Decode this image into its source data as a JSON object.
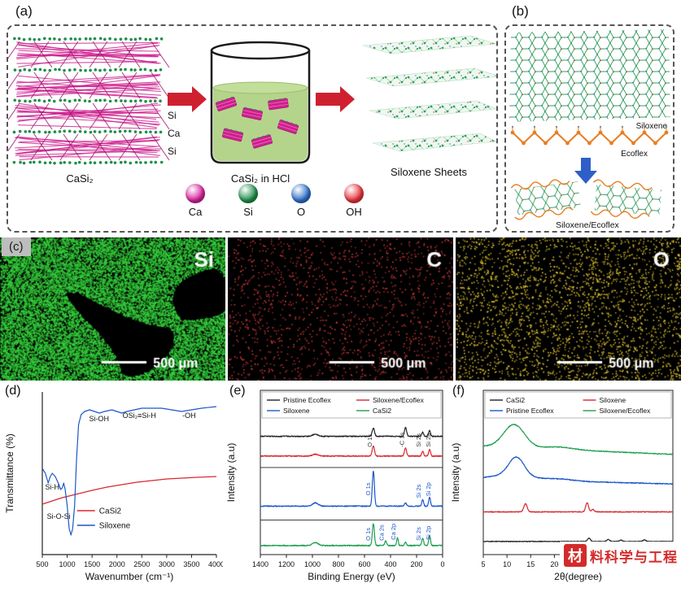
{
  "panel_a": {
    "label": "(a)",
    "crystal_label": "CaSi₂",
    "layer_labels": [
      "Si",
      "Ca",
      "Si"
    ],
    "beaker_label": "CaSi₂ in HCl",
    "sheets_label": "Siloxene Sheets",
    "legend": [
      {
        "name": "Ca",
        "color": "#d6219c"
      },
      {
        "name": "Si",
        "color": "#1e8f4a"
      },
      {
        "name": "O",
        "color": "#2e6fc9"
      },
      {
        "name": "OH",
        "color": "#e8323c"
      }
    ]
  },
  "panel_b": {
    "label": "(b)",
    "siloxene_label": "Siloxene",
    "ecoflex_label": "Ecoflex",
    "composite_label": "Siloxene/Ecoflex"
  },
  "panel_c": {
    "label": "(c)",
    "maps": [
      {
        "element": "Si",
        "dot_color": "#35d23c",
        "density": "dense",
        "scale_label": "500 μm"
      },
      {
        "element": "C",
        "dot_color": "#e23b3b",
        "density": "sparse",
        "scale_label": "500 μm"
      },
      {
        "element": "O",
        "dot_color": "#f0d22e",
        "density": "medium",
        "scale_label": "500 μm"
      }
    ]
  },
  "watermark": {
    "logo_char": "材",
    "text": "料科学与工程",
    "color": "#d42a2a"
  },
  "chart_data": [
    {
      "id": "ftir",
      "panel_label": "(d)",
      "type": "line",
      "xlabel": "Wavenumber (cm⁻¹)",
      "ylabel": "Transmittance (%)",
      "xlim": [
        500,
        4000
      ],
      "ylim": [
        0,
        100
      ],
      "xticks": [
        500,
        1000,
        1500,
        2000,
        2500,
        3000,
        3500,
        4000
      ],
      "legend_pos": [
        0.2,
        0.27
      ],
      "legend": [
        {
          "name": "CaSi2",
          "color": "#d7282f"
        },
        {
          "name": "Siloxene",
          "color": "#1c57c9"
        }
      ],
      "annotations": [
        {
          "text": "Si-H",
          "x": 700,
          "y": 40
        },
        {
          "text": "Si-O-Si",
          "x": 830,
          "y": 22
        },
        {
          "text": "Si-OH",
          "x": 1640,
          "y": 82
        },
        {
          "text": "OSi₂≡Si-H",
          "x": 2450,
          "y": 84
        },
        {
          "text": "-OH",
          "x": 3450,
          "y": 84
        }
      ],
      "series": [
        {
          "name": "CaSi2",
          "color": "#d7282f",
          "points": [
            [
              500,
              31
            ],
            [
              700,
              33
            ],
            [
              900,
              35
            ],
            [
              1100,
              36.5
            ],
            [
              1300,
              38
            ],
            [
              1500,
              39.5
            ],
            [
              1800,
              41.5
            ],
            [
              2100,
              43
            ],
            [
              2400,
              44.5
            ],
            [
              2700,
              45.5
            ],
            [
              3000,
              46.5
            ],
            [
              3300,
              47
            ],
            [
              3600,
              47.5
            ],
            [
              4000,
              48
            ]
          ]
        },
        {
          "name": "Siloxene",
          "color": "#1c57c9",
          "points": [
            [
              500,
              53
            ],
            [
              560,
              50
            ],
            [
              620,
              44
            ],
            [
              660,
              48
            ],
            [
              700,
              50
            ],
            [
              760,
              48
            ],
            [
              820,
              44
            ],
            [
              870,
              40
            ],
            [
              900,
              41
            ],
            [
              930,
              44
            ],
            [
              960,
              40
            ],
            [
              1000,
              30
            ],
            [
              1040,
              16
            ],
            [
              1075,
              12
            ],
            [
              1110,
              16
            ],
            [
              1150,
              30
            ],
            [
              1190,
              60
            ],
            [
              1230,
              80
            ],
            [
              1280,
              86
            ],
            [
              1350,
              88
            ],
            [
              1450,
              89
            ],
            [
              1550,
              88
            ],
            [
              1650,
              87
            ],
            [
              1750,
              88
            ],
            [
              1900,
              89
            ],
            [
              2000,
              88
            ],
            [
              2100,
              87
            ],
            [
              2200,
              88
            ],
            [
              2350,
              89
            ],
            [
              2500,
              90
            ],
            [
              2700,
              90
            ],
            [
              2900,
              90
            ],
            [
              3100,
              89
            ],
            [
              3300,
              88
            ],
            [
              3500,
              89
            ],
            [
              3700,
              90
            ],
            [
              4000,
              91
            ]
          ]
        }
      ]
    },
    {
      "id": "xps",
      "panel_label": "(e)",
      "type": "line",
      "xlabel": "Binding Energy (eV)",
      "ylabel": "Intensity (a.u)",
      "xlim": [
        1400,
        0
      ],
      "xticks": [
        1400,
        1200,
        1000,
        800,
        600,
        400,
        200,
        0
      ],
      "dividers": [
        0.53,
        0.21
      ],
      "legend_rows": [
        [
          {
            "name": "Pristine Ecoflex",
            "color": "#222222"
          },
          {
            "name": "Siloxene/Ecoflex",
            "color": "#d7282f"
          }
        ],
        [
          {
            "name": "Siloxene",
            "color": "#1c57c9"
          },
          {
            "name": "CaSi2",
            "color": "#1e9e50"
          }
        ]
      ],
      "peak_labels": [
        {
          "text": "O 1s",
          "x": 545,
          "y": 0.655,
          "color": "#333333"
        },
        {
          "text": "-C 1s",
          "x": 298,
          "y": 0.655,
          "color": "#333333"
        },
        {
          "text": "Si 2s",
          "x": 170,
          "y": 0.655,
          "color": "#333333"
        },
        {
          "text": "Si 2p",
          "x": 95,
          "y": 0.655,
          "color": "#333333"
        },
        {
          "text": "O 1s",
          "x": 555,
          "y": 0.36,
          "color": "#1c57c9"
        },
        {
          "text": "Si 2s",
          "x": 170,
          "y": 0.345,
          "color": "#1c57c9"
        },
        {
          "text": "Si 2p",
          "x": 95,
          "y": 0.355,
          "color": "#1c57c9"
        },
        {
          "text": "O 1s",
          "x": 555,
          "y": 0.085,
          "color": "#1c57c9"
        },
        {
          "text": "Ca 2s",
          "x": 452,
          "y": 0.085,
          "color": "#1c57c9"
        },
        {
          "text": "Ca 2p",
          "x": 362,
          "y": 0.09,
          "color": "#1c57c9"
        },
        {
          "text": "Si 2s",
          "x": 170,
          "y": 0.085,
          "color": "#1c57c9"
        },
        {
          "text": "Si 2p",
          "x": 95,
          "y": 0.09,
          "color": "#1c57c9"
        }
      ],
      "series": [
        {
          "name": "Pristine Ecoflex",
          "color": "#222222",
          "baseline": 0.72,
          "noise": 0.006,
          "seed": 1,
          "peaks": [
            {
              "c": 532,
              "h": 0.05,
              "w": 9
            },
            {
              "c": 285,
              "h": 0.055,
              "w": 8
            },
            {
              "c": 153,
              "h": 0.025,
              "w": 7
            },
            {
              "c": 100,
              "h": 0.035,
              "w": 7
            },
            {
              "c": 978,
              "h": 0.012,
              "w": 22
            }
          ]
        },
        {
          "name": "Siloxene/Ecoflex",
          "color": "#d7282f",
          "baseline": 0.6,
          "noise": 0.006,
          "seed": 2,
          "peaks": [
            {
              "c": 532,
              "h": 0.06,
              "w": 9
            },
            {
              "c": 285,
              "h": 0.05,
              "w": 8
            },
            {
              "c": 153,
              "h": 0.03,
              "w": 7
            },
            {
              "c": 100,
              "h": 0.04,
              "w": 7
            },
            {
              "c": 978,
              "h": 0.012,
              "w": 22
            }
          ]
        },
        {
          "name": "Siloxene",
          "color": "#1c57c9",
          "baseline": 0.295,
          "noise": 0.006,
          "seed": 3,
          "peaks": [
            {
              "c": 532,
              "h": 0.215,
              "w": 8
            },
            {
              "c": 285,
              "h": 0.02,
              "w": 8
            },
            {
              "c": 153,
              "h": 0.04,
              "w": 7
            },
            {
              "c": 100,
              "h": 0.055,
              "w": 7
            },
            {
              "c": 978,
              "h": 0.02,
              "w": 22
            }
          ]
        },
        {
          "name": "CaSi2",
          "color": "#1e9e50",
          "baseline": 0.055,
          "noise": 0.006,
          "seed": 4,
          "peaks": [
            {
              "c": 532,
              "h": 0.135,
              "w": 8
            },
            {
              "c": 438,
              "h": 0.028,
              "w": 7
            },
            {
              "c": 347,
              "h": 0.05,
              "w": 6
            },
            {
              "c": 285,
              "h": 0.02,
              "w": 7
            },
            {
              "c": 153,
              "h": 0.045,
              "w": 7
            },
            {
              "c": 100,
              "h": 0.06,
              "w": 7
            },
            {
              "c": 978,
              "h": 0.018,
              "w": 22
            }
          ]
        }
      ]
    },
    {
      "id": "xrd",
      "panel_label": "(f)",
      "type": "line",
      "xlabel": "2θ(degree)",
      "ylabel": "Intensity (a.u)",
      "xlim": [
        5,
        45
      ],
      "xticks": [
        5,
        10,
        15,
        20,
        25,
        30,
        35,
        40,
        45
      ],
      "legend_rows": [
        [
          {
            "name": "CaSi2",
            "color": "#222222"
          },
          {
            "name": "Siloxene",
            "color": "#d7282f"
          }
        ],
        [
          {
            "name": "Pristine Ecoflex",
            "color": "#1c57c9"
          },
          {
            "name": "Siloxene/Ecoflex",
            "color": "#1e9e50"
          }
        ]
      ],
      "series": [
        {
          "name": "Siloxene/Ecoflex",
          "color": "#1e9e50",
          "baseline": 0.66,
          "tilt": -0.05,
          "noise": 0.005,
          "seed": 5,
          "peaks": [
            {
              "c": 11.5,
              "h": 0.14,
              "w": 2.2
            },
            {
              "c": 21,
              "h": 0.015,
              "w": 3
            }
          ]
        },
        {
          "name": "Pristine Ecoflex",
          "color": "#1c57c9",
          "baseline": 0.46,
          "tilt": -0.03,
          "noise": 0.005,
          "seed": 6,
          "peaks": [
            {
              "c": 12,
              "h": 0.11,
              "w": 1.6
            },
            {
              "c": 11,
              "h": 0.03,
              "w": 4
            },
            {
              "c": 21,
              "h": 0.012,
              "w": 3
            }
          ]
        },
        {
          "name": "Siloxene",
          "color": "#d7282f",
          "baseline": 0.26,
          "noise": 0.005,
          "seed": 7,
          "peaks": [
            {
              "c": 13.9,
              "h": 0.05,
              "w": 0.35
            },
            {
              "c": 26.9,
              "h": 0.055,
              "w": 0.3
            },
            {
              "c": 28.1,
              "h": 0.015,
              "w": 0.3
            }
          ]
        },
        {
          "name": "CaSi2",
          "color": "#222222",
          "baseline": 0.08,
          "noise": 0.004,
          "seed": 8,
          "peaks": [
            {
              "c": 27.3,
              "h": 0.02,
              "w": 0.3
            },
            {
              "c": 31.4,
              "h": 0.012,
              "w": 0.3
            },
            {
              "c": 34,
              "h": 0.008,
              "w": 0.3
            },
            {
              "c": 39,
              "h": 0.01,
              "w": 0.3
            }
          ]
        }
      ]
    }
  ]
}
